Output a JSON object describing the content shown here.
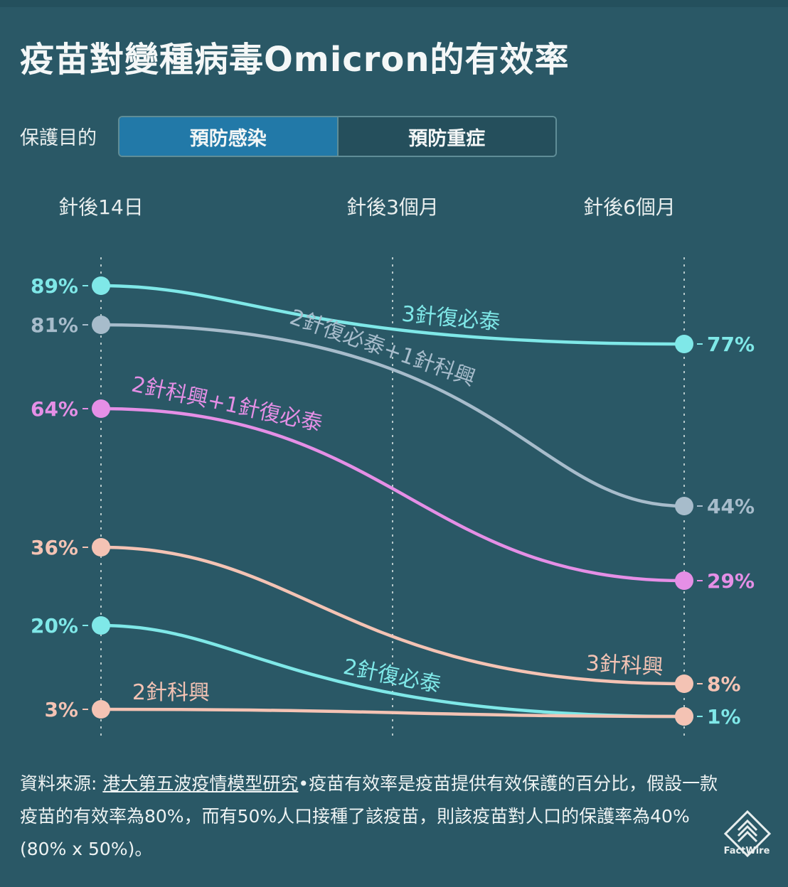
{
  "title": "疫苗對變種病毒Omicron的有效率",
  "protection": {
    "label": "保護目的",
    "options": [
      "預防感染",
      "預防重症"
    ],
    "selected": "預防感染"
  },
  "footer": {
    "source_prefix": "資料來源: ",
    "source_link": "港大第五波疫情模型研究",
    "text_rest": "•疫苗有效率是疫苗提供有效保護的百分比，假設一款疫苗的有效率為80%，而有50%人口接種了該疫苗，則該疫苗對人口的保護率為40% (80% x 50%)。"
  },
  "logo_text": "FactWire",
  "colors": {
    "background": "#2a5866",
    "active_tab": "#2279a8",
    "cyan": "#7fe8e8",
    "gray_blue": "#a7bccb",
    "pink": "#e58fe6",
    "salmon": "#f4c3b4"
  },
  "chart_data": {
    "type": "line",
    "title": "疫苗對變種病毒Omicron的有效率",
    "x_categories": [
      "針後14日",
      "針後3個月",
      "針後6個月"
    ],
    "ylim": [
      0,
      100
    ],
    "grid": "vertical dotted lines at each time point",
    "series": [
      {
        "name": "3針復必泰",
        "values": [
          89,
          null,
          77
        ],
        "start_label": "89%",
        "end_label": "77%",
        "color": "#7fe8e8",
        "label_pos": "middle"
      },
      {
        "name": "2針復必泰+1針科興",
        "values": [
          81,
          null,
          44
        ],
        "start_label": "81%",
        "end_label": "44%",
        "color": "#a7bccb",
        "label_pos": "middle"
      },
      {
        "name": "2針科興+1針復必泰",
        "values": [
          64,
          null,
          29
        ],
        "start_label": "64%",
        "end_label": "29%",
        "color": "#e58fe6",
        "label_pos": "start"
      },
      {
        "name": "3針科興",
        "values": [
          36,
          null,
          8
        ],
        "start_label": "36%",
        "end_label": "8%",
        "color": "#f4c3b4",
        "label_pos": "end"
      },
      {
        "name": "2針復必泰",
        "values": [
          20,
          null,
          1
        ],
        "start_label": "20%",
        "end_label": "1%",
        "color": "#7fe8e8",
        "label_pos": "middle"
      },
      {
        "name": "2針科興",
        "values": [
          3,
          null,
          1
        ],
        "start_label": "3%",
        "end_label": "",
        "color": "#f4c3b4",
        "label_pos": "start"
      }
    ]
  }
}
